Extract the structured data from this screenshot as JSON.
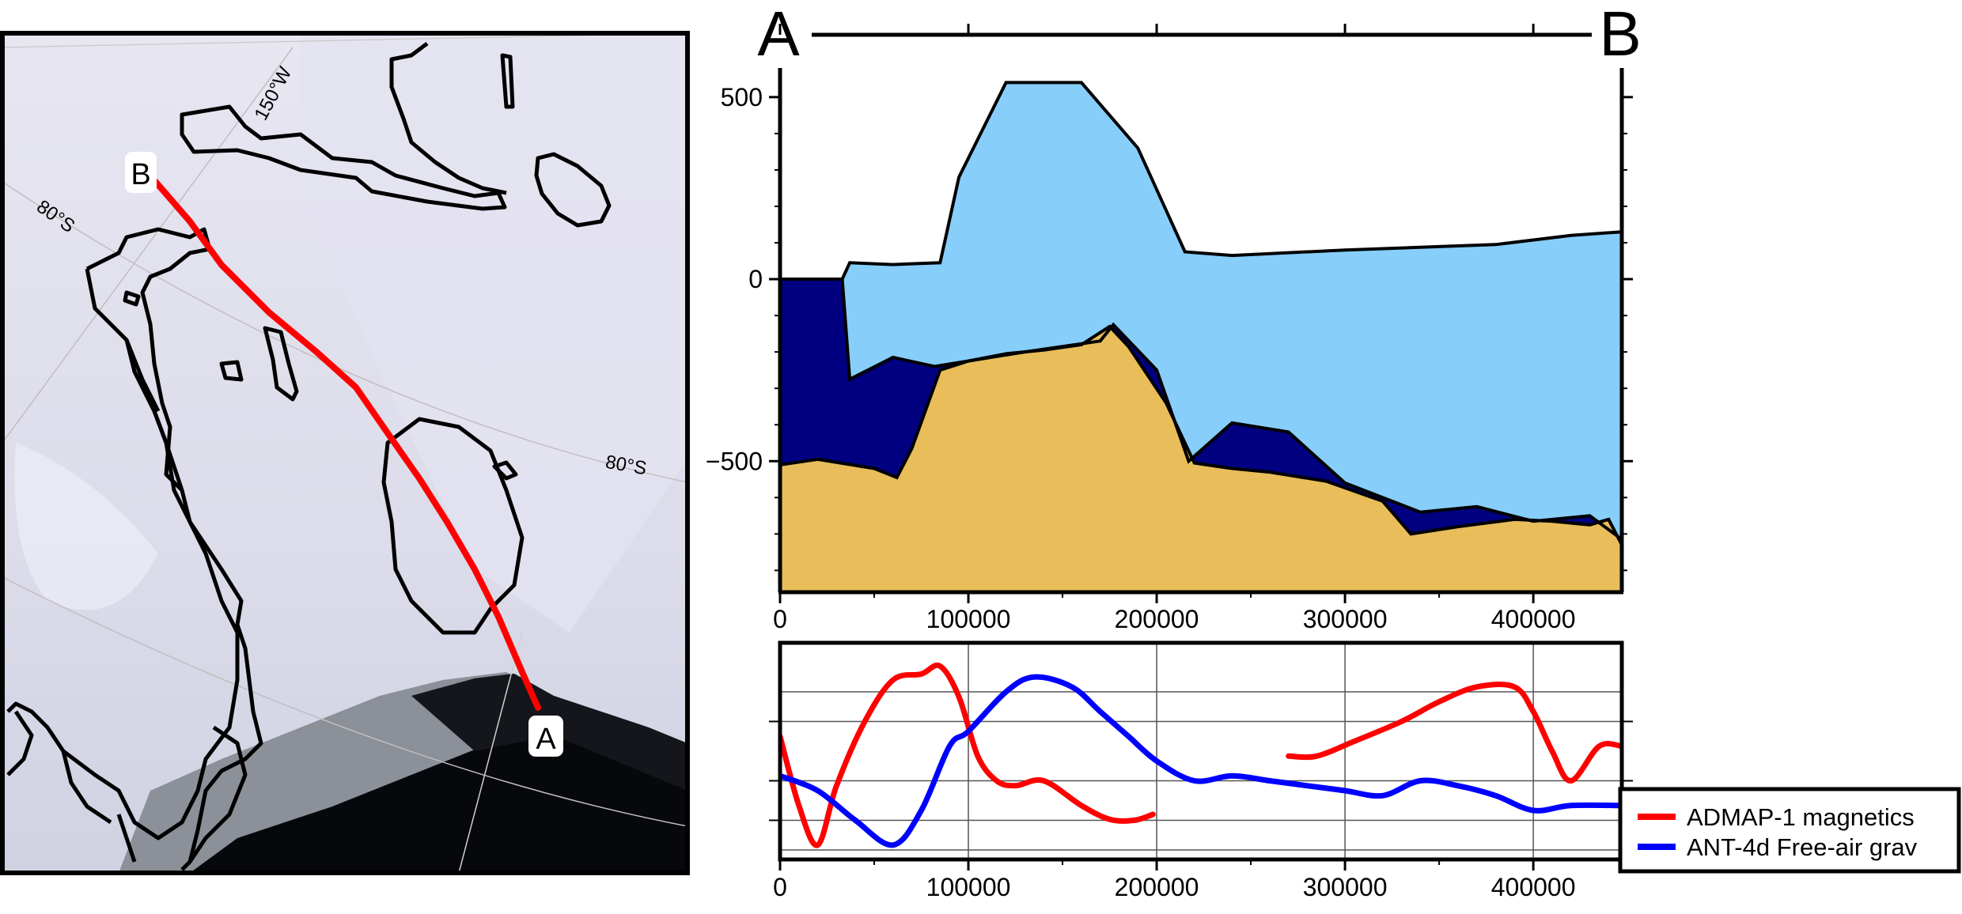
{
  "map": {
    "graticule_labels": [
      "150°W",
      "80°S",
      "80°S"
    ],
    "point_a": "A",
    "point_b": "B"
  },
  "profile": {
    "start_label": "A",
    "end_label": "B",
    "colors": {
      "ice": "#87CEFA",
      "water": "#000080",
      "bed": "#E8BD5A",
      "line": "#ff0000"
    }
  },
  "chart_data": [
    {
      "type": "area",
      "title": "",
      "xlabel": "",
      "ylabel": "",
      "xlim": [
        0,
        447000
      ],
      "ylim": [
        -860,
        580
      ],
      "xticks": [
        0,
        100000,
        200000,
        300000,
        400000
      ],
      "yticks": [
        500,
        0,
        -500
      ],
      "grid": false,
      "x": [
        0,
        33000,
        37000,
        60000,
        85000,
        95000,
        120000,
        160000,
        190000,
        215000,
        240000,
        300000,
        380000,
        420000,
        447000
      ],
      "series": [
        {
          "key": "surface",
          "values": [
            0,
            0,
            45,
            40,
            45,
            280,
            540,
            540,
            360,
            75,
            65,
            80,
            95,
            120,
            130
          ]
        },
        {
          "key": "ice_base",
          "x": [
            0,
            33000,
            37000,
            60000,
            82000,
            100000,
            130000,
            170000,
            177000,
            200000,
            217000,
            240000,
            270000,
            300000,
            340000,
            370000,
            400000,
            430000,
            447000
          ],
          "values": [
            0,
            0,
            -275,
            -215,
            -240,
            -225,
            -200,
            -170,
            -125,
            -250,
            -500,
            -395,
            -420,
            -560,
            -640,
            -625,
            -665,
            -650,
            -715
          ]
        },
        {
          "key": "bed",
          "x": [
            0,
            20000,
            50000,
            62000,
            70000,
            85000,
            100000,
            120000,
            140000,
            160000,
            175000,
            185000,
            205000,
            220000,
            240000,
            260000,
            290000,
            320000,
            335000,
            360000,
            390000,
            410000,
            430000,
            440000,
            447000
          ],
          "values": [
            -510,
            -495,
            -520,
            -545,
            -465,
            -250,
            -225,
            -205,
            -195,
            -180,
            -130,
            -185,
            -340,
            -505,
            -520,
            -530,
            -555,
            -610,
            -700,
            -680,
            -660,
            -665,
            -675,
            -660,
            -730
          ]
        }
      ]
    },
    {
      "type": "line",
      "title": "",
      "xlabel": "",
      "ylabel": "",
      "xlim": [
        0,
        447000
      ],
      "ylim": [
        -1,
        1
      ],
      "xticks": [
        0,
        100000,
        200000,
        300000,
        400000
      ],
      "legend": "bottom-right",
      "grid": true,
      "series": [
        {
          "name": "ADMAP-1 magnetics",
          "color": "#ff0000",
          "segments": [
            {
              "x": [
                0,
                10000,
                20000,
                30000,
                45000,
                60000,
                75000,
                85000,
                95000,
                105000,
                115000,
                125000,
                140000,
                160000,
                175000,
                188000,
                198000
              ],
              "values": [
                0.15,
                -0.55,
                -0.95,
                -0.35,
                0.3,
                0.72,
                0.78,
                0.86,
                0.55,
                -0.05,
                -0.3,
                -0.35,
                -0.3,
                -0.55,
                -0.69,
                -0.7,
                -0.64
              ]
            },
            {
              "x": [
                270000,
                285000,
                305000,
                330000,
                350000,
                370000,
                390000,
                400000,
                410000,
                420000,
                435000,
                447000
              ],
              "values": [
                -0.05,
                -0.05,
                0.1,
                0.3,
                0.5,
                0.65,
                0.65,
                0.4,
                0.0,
                -0.3,
                0.05,
                0.05
              ]
            }
          ]
        },
        {
          "name": "ANT-4d Free-air grav",
          "color": "#0000ff",
          "segments": [
            {
              "x": [
                0,
                20000,
                40000,
                60000,
                75000,
                90000,
                100000,
                120000,
                135000,
                155000,
                170000,
                185000,
                200000,
                220000,
                240000,
                260000,
                280000,
                300000,
                320000,
                340000,
                360000,
                380000,
                400000,
                420000,
                447000
              ],
              "values": [
                -0.25,
                -0.4,
                -0.7,
                -0.95,
                -0.6,
                0.05,
                0.2,
                0.6,
                0.75,
                0.65,
                0.4,
                0.15,
                -0.1,
                -0.3,
                -0.25,
                -0.3,
                -0.35,
                -0.4,
                -0.45,
                -0.3,
                -0.35,
                -0.45,
                -0.6,
                -0.55,
                -0.55
              ]
            }
          ]
        }
      ]
    }
  ]
}
